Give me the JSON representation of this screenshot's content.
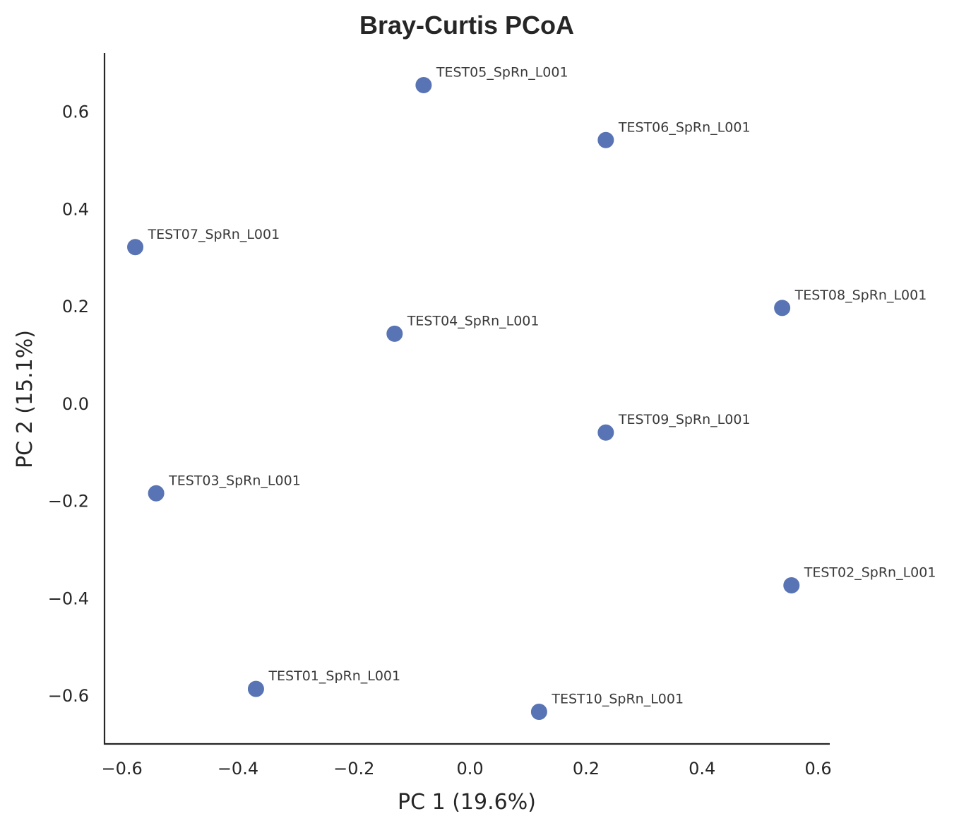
{
  "chart_data": {
    "type": "scatter",
    "title": "Bray-Curtis PCoA",
    "xlabel": "PC 1 (19.6%)",
    "ylabel": "PC 2 (15.1%)",
    "xlim": [
      -0.63,
      0.62
    ],
    "ylim": [
      -0.7,
      0.72
    ],
    "xticks": [
      -0.6,
      -0.4,
      -0.2,
      0.0,
      0.2,
      0.4,
      0.6
    ],
    "xtick_labels": [
      "−0.6",
      "−0.4",
      "−0.2",
      "0.0",
      "0.2",
      "0.4",
      "0.6"
    ],
    "yticks": [
      -0.6,
      -0.4,
      -0.2,
      0.0,
      0.2,
      0.4,
      0.6
    ],
    "ytick_labels": [
      "−0.6",
      "−0.4",
      "−0.2",
      "0.0",
      "0.2",
      "0.4",
      "0.6"
    ],
    "grid": false,
    "marker_color": "#5874b4",
    "points": [
      {
        "label": "TEST05_SpRn_L001",
        "x": -0.08,
        "y": 0.654
      },
      {
        "label": "TEST06_SpRn_L001",
        "x": 0.234,
        "y": 0.541
      },
      {
        "label": "TEST07_SpRn_L001",
        "x": -0.577,
        "y": 0.321
      },
      {
        "label": "TEST08_SpRn_L001",
        "x": 0.538,
        "y": 0.196
      },
      {
        "label": "TEST04_SpRn_L001",
        "x": -0.13,
        "y": 0.143
      },
      {
        "label": "TEST09_SpRn_L001",
        "x": 0.234,
        "y": -0.06
      },
      {
        "label": "TEST03_SpRn_L001",
        "x": -0.541,
        "y": -0.185
      },
      {
        "label": "TEST02_SpRn_L001",
        "x": 0.554,
        "y": -0.374
      },
      {
        "label": "TEST01_SpRn_L001",
        "x": -0.369,
        "y": -0.587
      },
      {
        "label": "TEST10_SpRn_L001",
        "x": 0.119,
        "y": -0.634
      }
    ]
  }
}
